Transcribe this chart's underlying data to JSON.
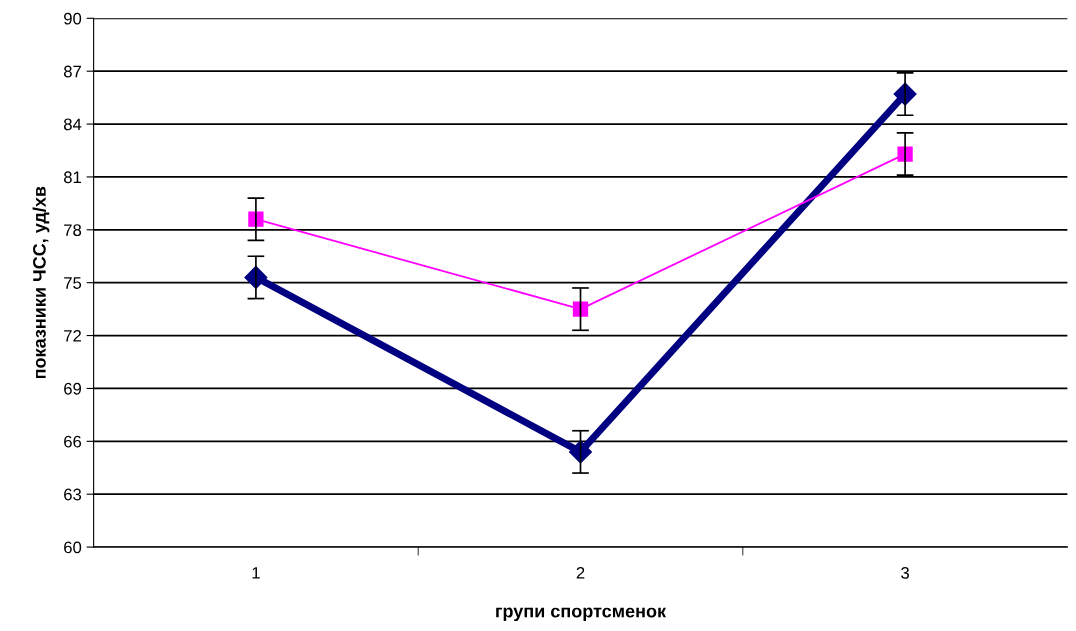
{
  "chart_data": {
    "type": "line",
    "xlabel": "групи спортсменок",
    "ylabel": "показники ЧСС, уд/хв",
    "categories": [
      "1",
      "2",
      "3"
    ],
    "series": [
      {
        "color": "#000080",
        "values": [
          75.3,
          65.4,
          85.7
        ],
        "errors": [
          1.2,
          1.2,
          1.2
        ],
        "marker": "diamond"
      },
      {
        "color": "#ff00ff",
        "values": [
          78.6,
          73.5,
          82.3
        ],
        "errors": [
          1.2,
          1.2,
          1.2
        ],
        "marker": "square"
      }
    ],
    "ylim": [
      60,
      90
    ],
    "yticks": [
      60,
      63,
      66,
      69,
      72,
      75,
      78,
      81,
      84,
      87,
      90
    ],
    "grid": "y",
    "legend": false
  }
}
